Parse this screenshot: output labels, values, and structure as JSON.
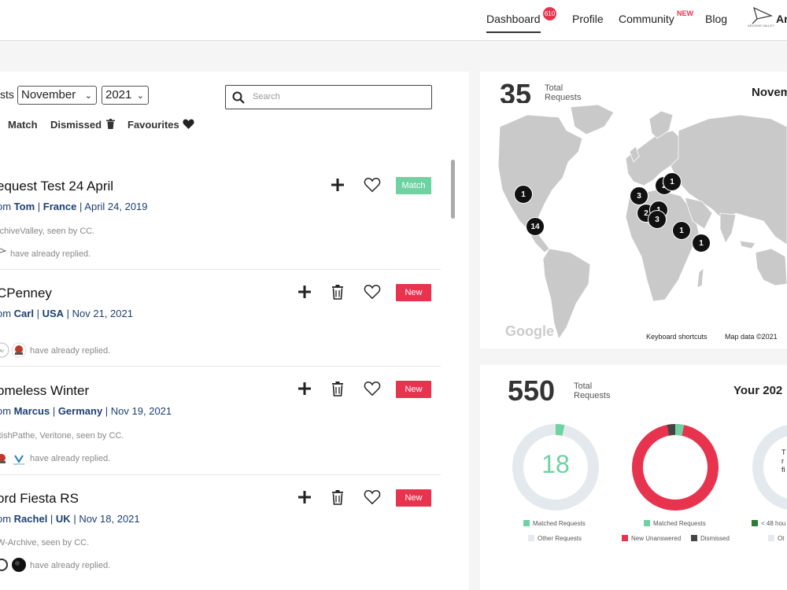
{
  "nav": {
    "dashboard": "Dashboard",
    "dashboard_badge": "610",
    "profile": "Profile",
    "community": "Community",
    "community_badge": "NEW",
    "blog": "Blog",
    "logo_text": "ARCHIVE VALLEY",
    "user_initial": "Ar"
  },
  "filters": {
    "label": "sts",
    "month": "November",
    "year": "2021",
    "search_placeholder": "Search"
  },
  "tabs": [
    "Match",
    "Dismissed",
    "Favourites"
  ],
  "requests": [
    {
      "title": "equest Test 24 April",
      "prefix": "om ",
      "user": "Tom",
      "country": "France",
      "date": "April 24, 2019",
      "seen": "rchiveValley, seen by CC.",
      "replied": "have already replied.",
      "status": "Match"
    },
    {
      "title": "CPenney",
      "prefix": "om ",
      "user": "Carl",
      "country": "USA",
      "date": "Nov 21, 2021",
      "seen": "",
      "replied": "have already replied.",
      "status": "New"
    },
    {
      "title": "omeless Winter",
      "prefix": "om ",
      "user": "Marcus",
      "country": "Germany",
      "date": "Nov 19, 2021",
      "seen": "itishPathe, Veritone, seen by CC.",
      "replied": "have already replied.",
      "status": "New"
    },
    {
      "title": "ord Fiesta RS",
      "prefix": "om ",
      "user": "Rachel",
      "country": "UK",
      "date": "Nov 18, 2021",
      "seen": "W-Archive, seen by CC.",
      "replied": "have already replied.",
      "status": "New"
    }
  ],
  "map": {
    "total": "35",
    "total_label_1": "Total",
    "total_label_2": "Requests",
    "month": "Novem",
    "pins": [
      "1",
      "14",
      "3",
      "2",
      "1",
      "2",
      "1",
      "3",
      "1",
      "1"
    ],
    "google": "Google",
    "keyboard": "Keyboard shortcuts",
    "map_data": "Map data ©2021"
  },
  "stats": {
    "total": "550",
    "total_label_1": "Total",
    "total_label_2": "Requests",
    "year_title": "Your 202",
    "donut1_value": "18",
    "donut1_legend": [
      "Matched Requests",
      "Other Requests"
    ],
    "donut2_legend": [
      "Matched Requests",
      "New Unanswered",
      "Dismissed"
    ],
    "donut3_text": [
      "T",
      "r",
      "fi"
    ],
    "donut3_legend": [
      "< 48 hou",
      "Ot"
    ]
  },
  "colors": {
    "accent_red": "#e8334f",
    "match_green": "#6fd2a1",
    "link_blue": "#1d3f72",
    "dark": "#444444",
    "grey_track": "#e4e9ee"
  }
}
